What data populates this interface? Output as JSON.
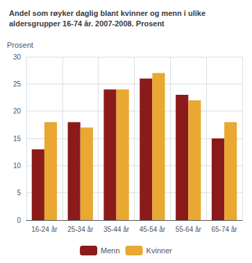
{
  "chart_data": {
    "type": "bar",
    "title": "Andel som røyker daglig blant kvinner og menn i ulike\naldersgrupper 16-74 år. 2007-2008. Prosent",
    "y_label": "Prosent",
    "categories": [
      "16-24 år",
      "25-34 år",
      "35-44 år",
      "45-54 år",
      "55-64 år",
      "65-74 år"
    ],
    "series": [
      {
        "name": "Menn",
        "color": "#8B1A1A",
        "values": [
          13,
          18,
          24,
          26,
          23,
          15
        ]
      },
      {
        "name": "Kvinner",
        "color": "#E8A832",
        "values": [
          18,
          17,
          24,
          27,
          22,
          18
        ]
      }
    ],
    "ylim": [
      0,
      30
    ],
    "yticks": [
      0,
      5,
      10,
      15,
      20,
      25,
      30
    ],
    "grid": true,
    "legend": "bottom"
  }
}
